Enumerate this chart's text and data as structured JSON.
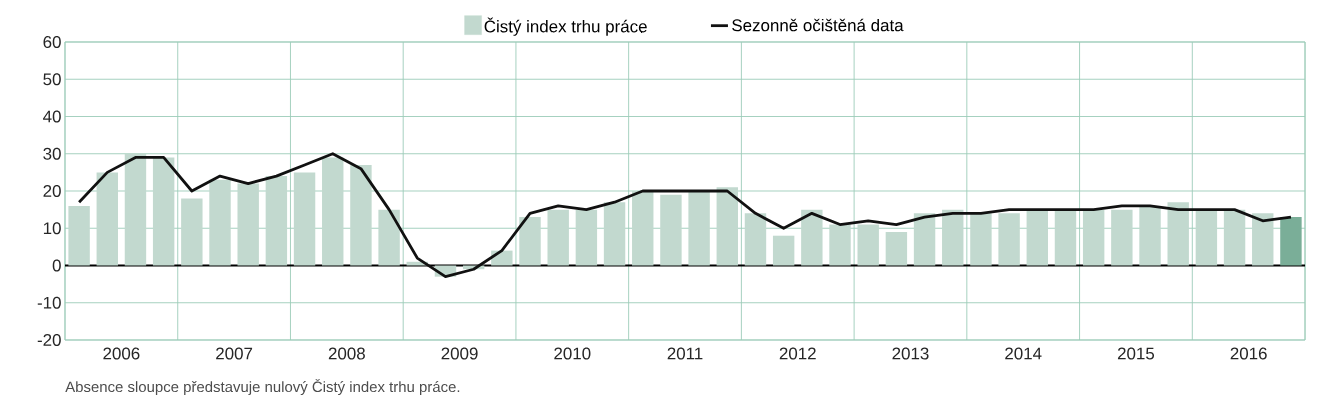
{
  "chart_data": {
    "type": "bar",
    "x": [
      2006.125,
      2006.375,
      2006.625,
      2006.875,
      2007.125,
      2007.375,
      2007.625,
      2007.875,
      2008.125,
      2008.375,
      2008.625,
      2008.875,
      2009.125,
      2009.375,
      2009.625,
      2009.875,
      2010.125,
      2010.375,
      2010.625,
      2010.875,
      2011.125,
      2011.375,
      2011.625,
      2011.875,
      2012.125,
      2012.375,
      2012.625,
      2012.875,
      2013.125,
      2013.375,
      2013.625,
      2013.875,
      2014.125,
      2014.375,
      2014.625,
      2014.875,
      2015.125,
      2015.375,
      2015.625,
      2015.875,
      2016.125,
      2016.375,
      2016.625,
      2016.875
    ],
    "series": [
      {
        "name": "Čistý index trhu práce",
        "color": "#c2d9cf",
        "values": [
          16,
          25,
          30,
          29,
          18,
          23,
          22,
          24,
          25,
          29,
          27,
          15,
          1,
          -3,
          -1,
          4,
          13,
          15,
          15,
          17,
          20,
          19,
          20,
          21,
          14,
          8,
          15,
          11,
          11,
          9,
          14,
          15,
          14,
          14,
          15,
          15,
          15,
          15,
          16,
          17,
          15,
          15,
          14,
          13
        ],
        "colors": [
          "#c2d9cf",
          "#c2d9cf",
          "#c2d9cf",
          "#c2d9cf",
          "#c2d9cf",
          "#c2d9cf",
          "#c2d9cf",
          "#c2d9cf",
          "#c2d9cf",
          "#c2d9cf",
          "#c2d9cf",
          "#c2d9cf",
          "#c2d9cf",
          "#c2d9cf",
          "#c2d9cf",
          "#c2d9cf",
          "#c2d9cf",
          "#c2d9cf",
          "#c2d9cf",
          "#c2d9cf",
          "#c2d9cf",
          "#c2d9cf",
          "#c2d9cf",
          "#c2d9cf",
          "#c2d9cf",
          "#c2d9cf",
          "#c2d9cf",
          "#c2d9cf",
          "#c2d9cf",
          "#c2d9cf",
          "#c2d9cf",
          "#c2d9cf",
          "#c2d9cf",
          "#c2d9cf",
          "#c2d9cf",
          "#c2d9cf",
          "#c2d9cf",
          "#c2d9cf",
          "#c2d9cf",
          "#c2d9cf",
          "#c2d9cf",
          "#c2d9cf",
          "#c2d9cf",
          "#7aae98"
        ]
      },
      {
        "name": "Sezonně očištěná data",
        "type": "line",
        "color": "#111111",
        "values": [
          17,
          25,
          29,
          29,
          20,
          24,
          22,
          24,
          27,
          30,
          26,
          15,
          2,
          -3,
          -1,
          4,
          14,
          16,
          15,
          17,
          20,
          20,
          20,
          20,
          14,
          10,
          14,
          11,
          12,
          11,
          13,
          14,
          14,
          15,
          15,
          15,
          15,
          16,
          16,
          15,
          15,
          15,
          12,
          13
        ]
      }
    ],
    "xlim": [
      2006,
      2017
    ],
    "xticks": [
      {
        "value": 2006,
        "label": null
      },
      {
        "value": 2006.5,
        "label": "2006"
      },
      {
        "value": 2007,
        "label": null
      },
      {
        "value": 2007.5,
        "label": "2007"
      },
      {
        "value": 2008,
        "label": null
      },
      {
        "value": 2008.5,
        "label": "2008"
      },
      {
        "value": 2009,
        "label": null
      },
      {
        "value": 2009.5,
        "label": "2009"
      },
      {
        "value": 2010,
        "label": null
      },
      {
        "value": 2010.5,
        "label": "2010"
      },
      {
        "value": 2011,
        "label": null
      },
      {
        "value": 2011.5,
        "label": "2011"
      },
      {
        "value": 2012,
        "label": null
      },
      {
        "value": 2012.5,
        "label": "2012"
      },
      {
        "value": 2013,
        "label": null
      },
      {
        "value": 2013.5,
        "label": "2013"
      },
      {
        "value": 2014,
        "label": null
      },
      {
        "value": 2014.5,
        "label": "2014"
      },
      {
        "value": 2015,
        "label": null
      },
      {
        "value": 2015.5,
        "label": "2015"
      },
      {
        "value": 2016,
        "label": null
      },
      {
        "value": 2016.5,
        "label": "2016"
      },
      {
        "value": 2017,
        "label": null
      }
    ],
    "ylim": [
      -20,
      60
    ],
    "yticks": [
      -20,
      -10,
      0,
      10,
      20,
      30,
      40,
      50,
      60
    ],
    "grid": true,
    "legend": "top",
    "annotations": [
      "Absence sloupce představuje nulový Čistý index trhu práce."
    ]
  }
}
